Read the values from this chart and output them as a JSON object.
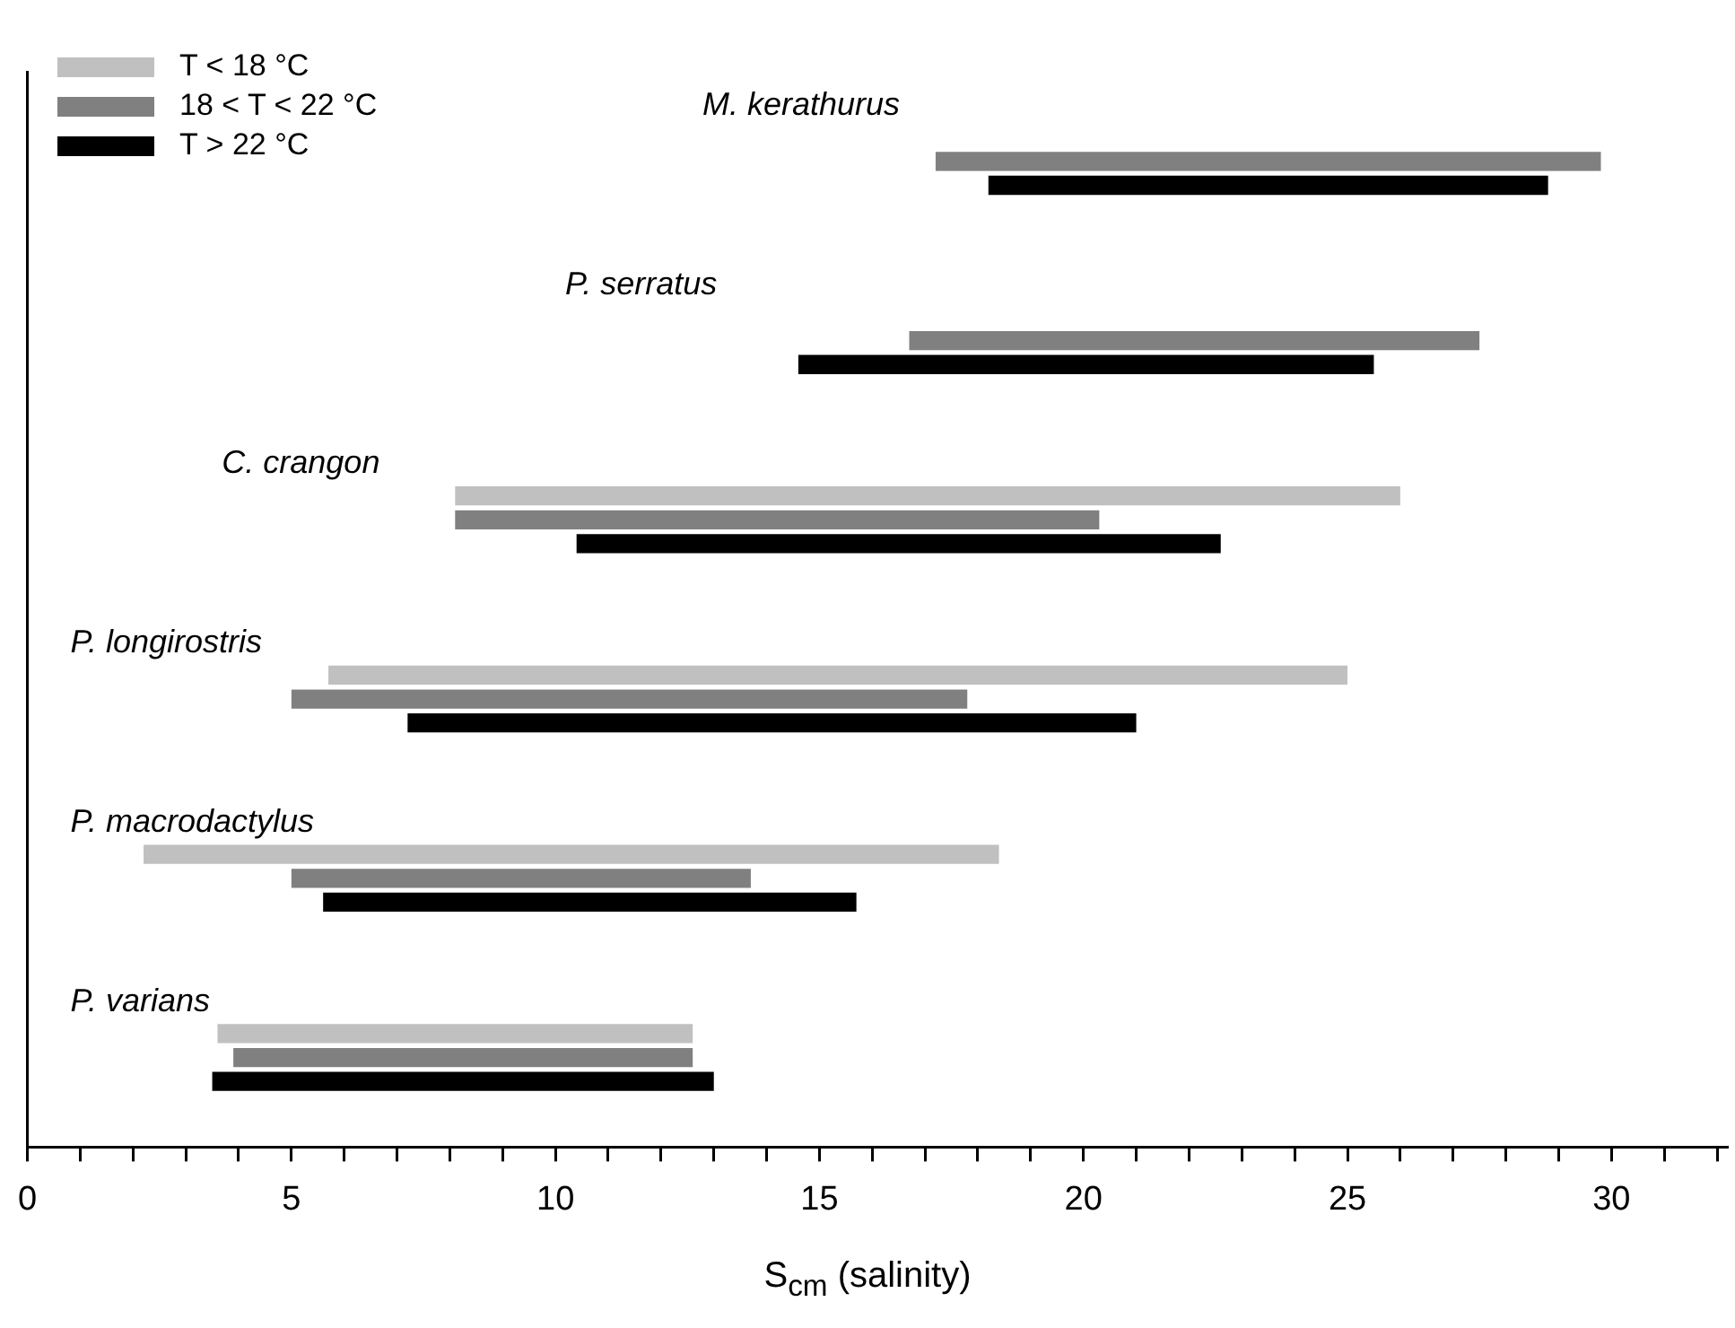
{
  "chart_data": {
    "type": "bar",
    "orientation": "horizontal",
    "xlabel": "S$_{cm}$ (salinity)",
    "categories": [
      "M. kerathurus",
      "P. serratus",
      "C. crangon",
      "P. longirostris",
      "P. macrodactylus",
      "P. varians"
    ],
    "series": [
      {
        "name": "T < 18 °C",
        "color": "#c0c0c0",
        "base": [
          null,
          null,
          8.1,
          5.7,
          2.2,
          3.6
        ],
        "values": [
          null,
          null,
          17.9,
          19.3,
          16.2,
          9.0
        ]
      },
      {
        "name": "18 < T < 22 °C",
        "color": "#808080",
        "base": [
          17.2,
          16.7,
          8.1,
          5.0,
          5.0,
          3.9
        ],
        "values": [
          12.6,
          10.8,
          12.2,
          12.8,
          8.7,
          8.7
        ]
      },
      {
        "name": "T > 22 °C",
        "color": "#000000",
        "base": [
          18.2,
          14.6,
          10.4,
          7.2,
          5.6,
          3.5
        ],
        "values": [
          10.6,
          10.9,
          12.2,
          13.8,
          10.1,
          9.5
        ]
      }
    ],
    "xlim": [
      0,
      32.2
    ],
    "xticks": [
      0,
      {
        "value": 1,
        "label": null
      },
      {
        "value": 2,
        "label": null
      },
      {
        "value": 3,
        "label": null
      },
      {
        "value": 4,
        "label": null
      },
      5,
      {
        "value": 6,
        "label": null
      },
      {
        "value": 7,
        "label": null
      },
      {
        "value": 8,
        "label": null
      },
      {
        "value": 9,
        "label": null
      },
      10,
      {
        "value": 11,
        "label": null
      },
      {
        "value": 12,
        "label": null
      },
      {
        "value": 13,
        "label": null
      },
      {
        "value": 14,
        "label": null
      },
      15,
      {
        "value": 16,
        "label": null
      },
      {
        "value": 17,
        "label": null
      },
      {
        "value": 18,
        "label": null
      },
      {
        "value": 19,
        "label": null
      },
      20,
      {
        "value": 21,
        "label": null
      },
      {
        "value": 22,
        "label": null
      },
      {
        "value": 23,
        "label": null
      },
      {
        "value": 24,
        "label": null
      },
      25,
      {
        "value": 26,
        "label": null
      },
      {
        "value": 27,
        "label": null
      },
      {
        "value": 28,
        "label": null
      },
      {
        "value": 29,
        "label": null
      },
      30,
      {
        "value": 31,
        "label": null
      },
      {
        "value": 32,
        "label": null
      }
    ],
    "grid": false,
    "legend": "top left",
    "tick_labels": "x"
  }
}
